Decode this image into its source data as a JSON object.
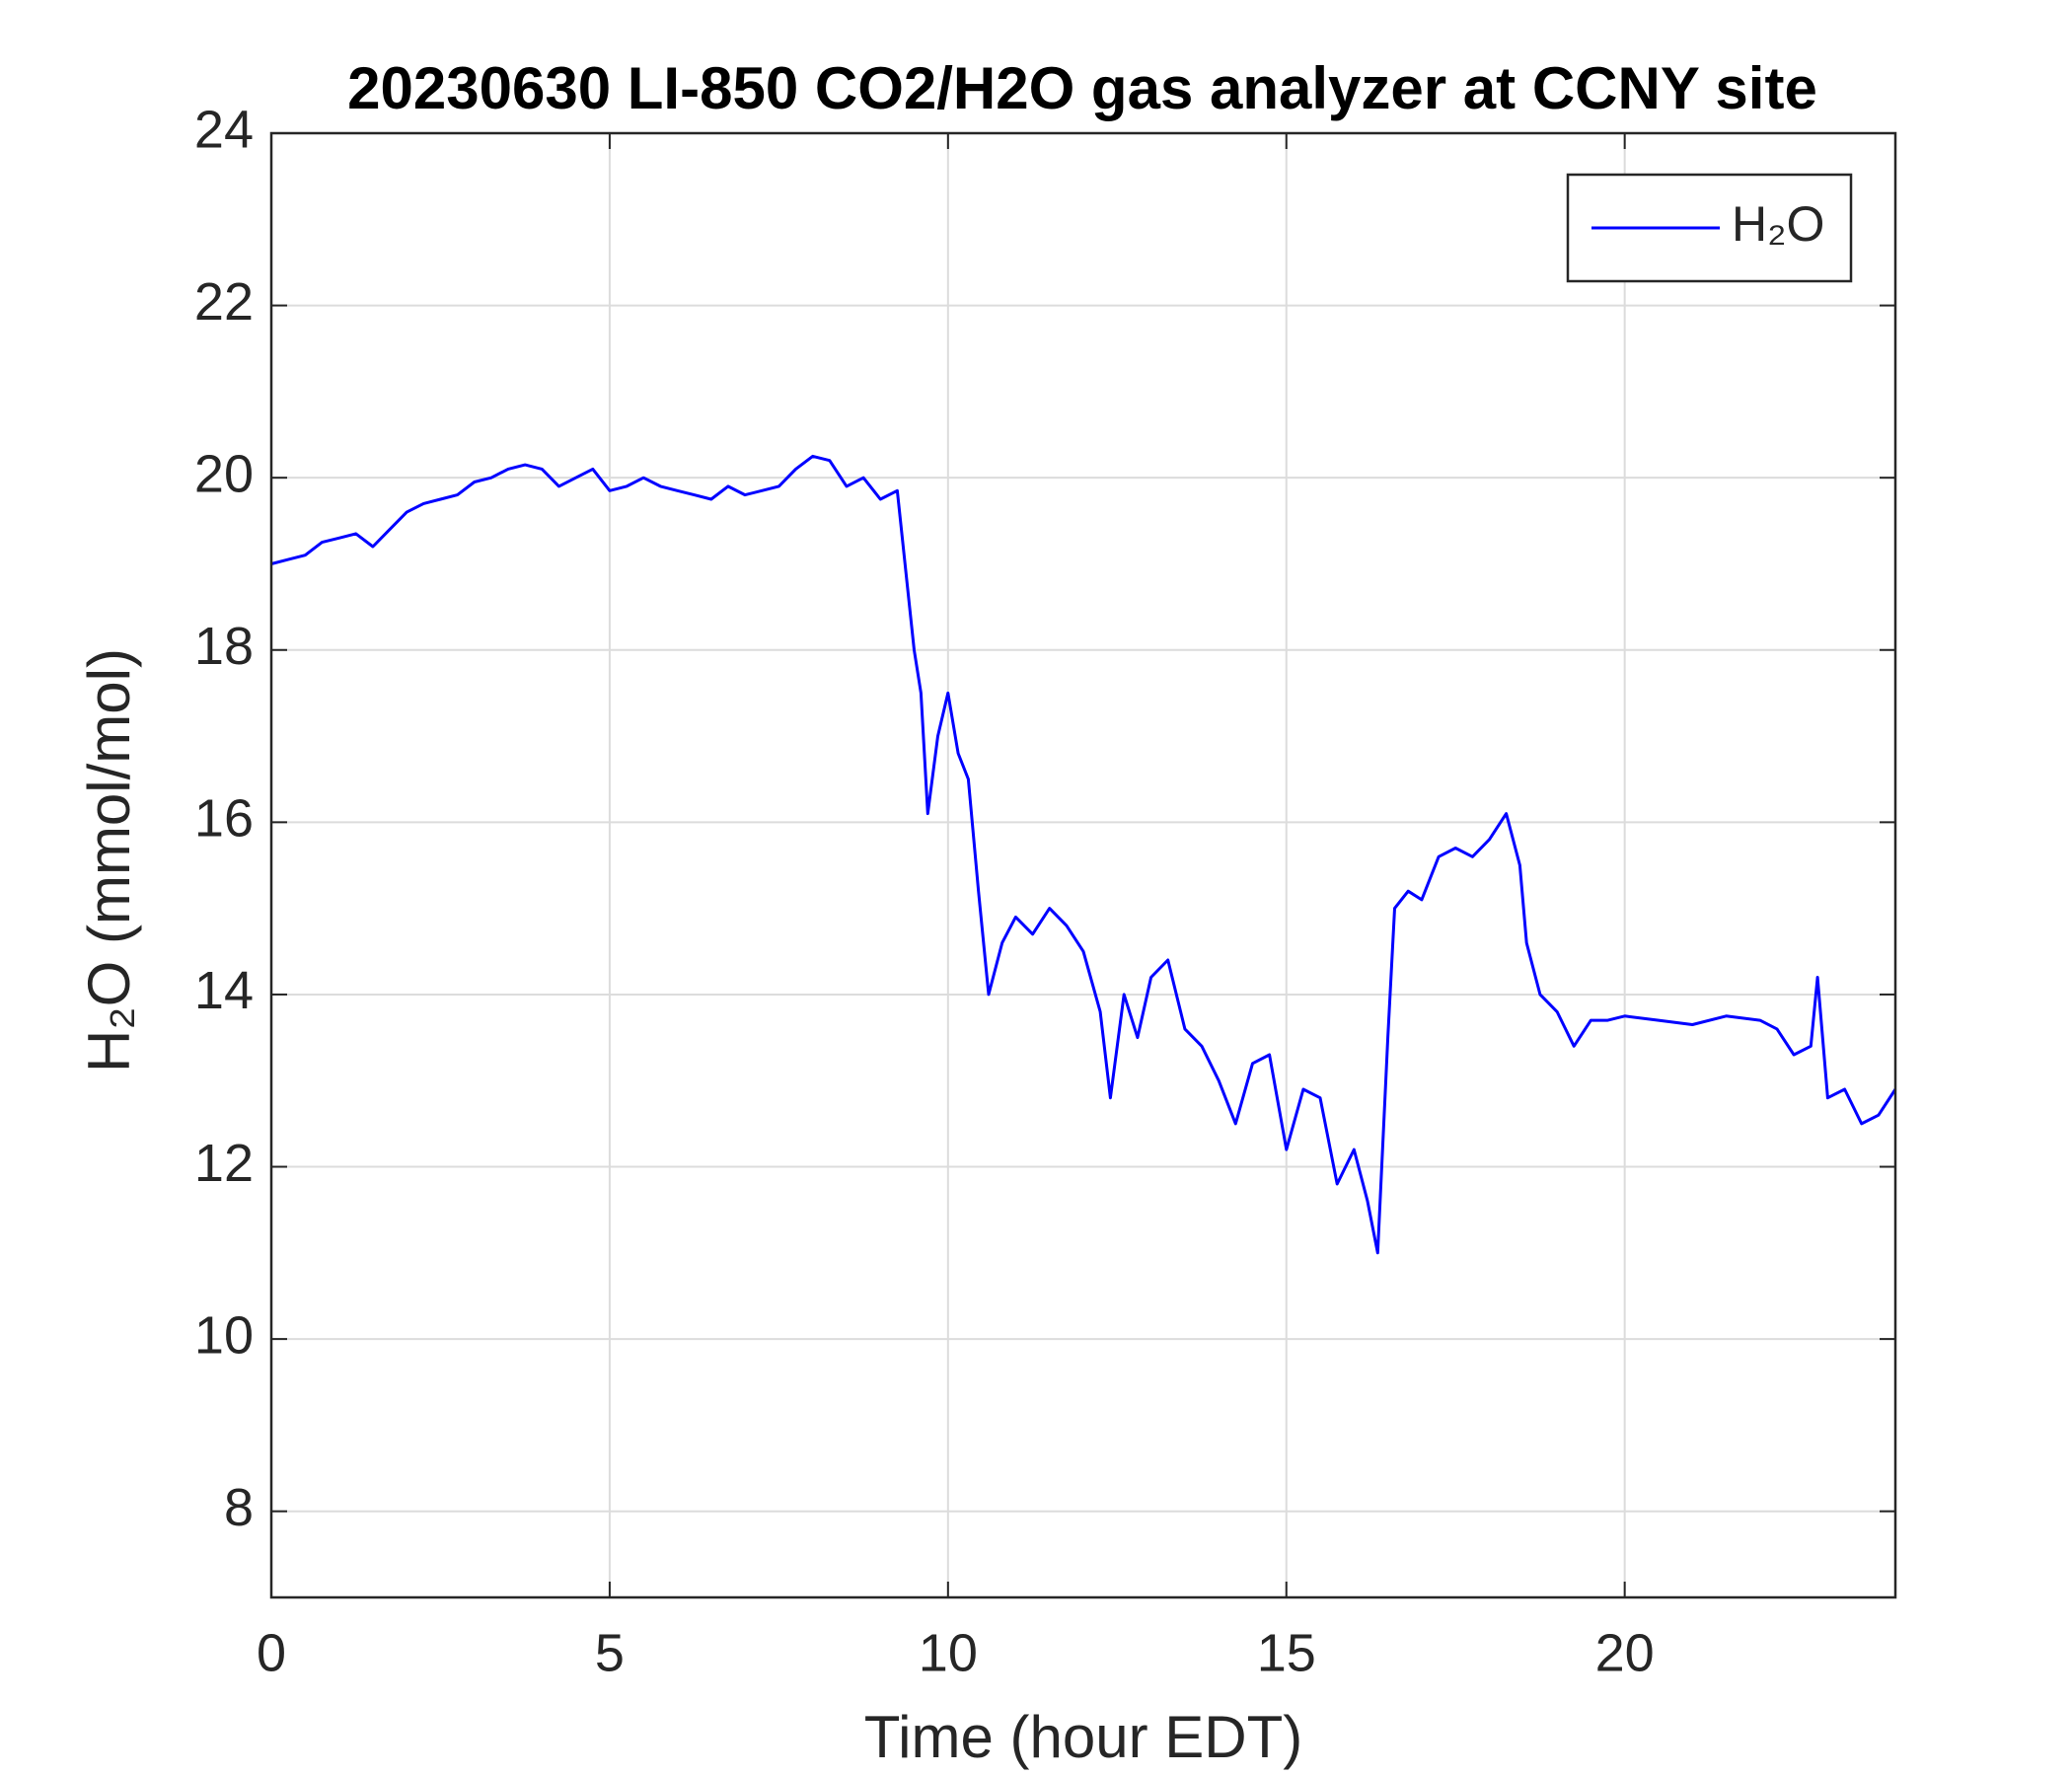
{
  "chart_data": {
    "type": "line",
    "title": "20230630 LI-850 CO2/H2O gas analyzer at CCNY site",
    "x_label": "Time (hour EDT)",
    "y_label": "H₂O (mmol/mol)",
    "x": [
      0,
      0.25,
      0.5,
      0.75,
      1,
      1.25,
      1.5,
      1.75,
      2,
      2.25,
      2.5,
      2.75,
      3,
      3.25,
      3.5,
      3.75,
      4,
      4.25,
      4.5,
      4.75,
      5,
      5.25,
      5.5,
      5.75,
      6,
      6.25,
      6.5,
      6.75,
      7,
      7.25,
      7.5,
      7.75,
      8,
      8.25,
      8.5,
      8.75,
      9,
      9.25,
      9.5,
      9.6,
      9.7,
      9.85,
      10,
      10.15,
      10.3,
      10.45,
      10.6,
      10.8,
      11,
      11.25,
      11.5,
      11.75,
      12,
      12.25,
      12.4,
      12.6,
      12.8,
      13,
      13.25,
      13.5,
      13.75,
      14,
      14.25,
      14.5,
      14.75,
      15,
      15.25,
      15.5,
      15.75,
      16,
      16.2,
      16.35,
      16.5,
      16.6,
      16.8,
      17,
      17.25,
      17.5,
      17.75,
      18,
      18.25,
      18.45,
      18.55,
      18.75,
      19,
      19.25,
      19.5,
      19.75,
      20,
      20.5,
      21,
      21.5,
      22,
      22.25,
      22.5,
      22.75,
      22.85,
      23,
      23.25,
      23.5,
      23.75,
      24
    ],
    "series": [
      {
        "name": "H₂O",
        "color": "#0000ff",
        "values": [
          19.0,
          19.05,
          19.1,
          19.25,
          19.3,
          19.35,
          19.2,
          19.4,
          19.6,
          19.7,
          19.75,
          19.8,
          19.95,
          20.0,
          20.1,
          20.15,
          20.1,
          19.9,
          20.0,
          20.1,
          19.85,
          19.9,
          20.0,
          19.9,
          19.85,
          19.8,
          19.75,
          19.9,
          19.8,
          19.85,
          19.9,
          20.1,
          20.25,
          20.2,
          19.9,
          20.0,
          19.75,
          19.85,
          18.0,
          17.5,
          16.1,
          17.0,
          17.5,
          16.8,
          16.5,
          15.2,
          14.0,
          14.6,
          14.9,
          14.7,
          15.0,
          14.8,
          14.5,
          13.8,
          12.8,
          14.0,
          13.5,
          14.2,
          14.4,
          13.6,
          13.4,
          13.0,
          12.5,
          13.2,
          13.3,
          12.2,
          12.9,
          12.8,
          11.8,
          12.2,
          11.6,
          11.0,
          13.5,
          15.0,
          15.2,
          15.1,
          15.6,
          15.7,
          15.6,
          15.8,
          16.1,
          15.5,
          14.6,
          14.0,
          13.8,
          13.4,
          13.7,
          13.7,
          13.75,
          13.7,
          13.65,
          13.75,
          13.7,
          13.6,
          13.3,
          13.4,
          14.2,
          12.8,
          12.9,
          12.5,
          12.6,
          12.9
        ]
      }
    ],
    "xlim": [
      0,
      24
    ],
    "xticks": [
      0,
      5,
      10,
      15,
      20
    ],
    "ylim": [
      7,
      24
    ],
    "yticks": [
      8,
      10,
      12,
      14,
      16,
      18,
      20,
      22,
      24
    ],
    "grid": true,
    "legend": "upper-right"
  }
}
